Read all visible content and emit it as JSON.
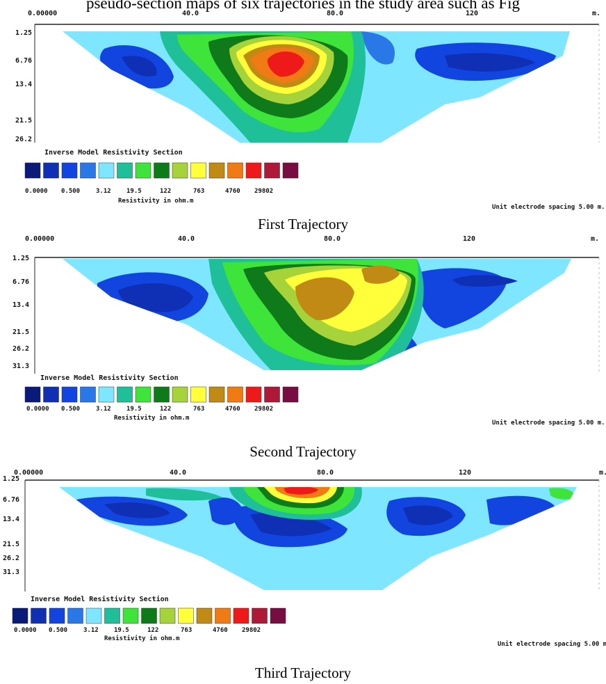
{
  "header_text": "pseudo-section maps of six trajectories in the study area such as Fig",
  "palette": [
    "#0a1a78",
    "#0f2fb4",
    "#1244e0",
    "#2a78e8",
    "#7fe6ff",
    "#1fbf9a",
    "#3ee43a",
    "#0f7a1a",
    "#a6d23a",
    "#ffff3a",
    "#c08a14",
    "#f07a14",
    "#ee1a1a",
    "#b01838",
    "#7a0c44"
  ],
  "common": {
    "legend_title": "Inverse Model Resistivity Section",
    "legend_ticks": [
      "0.0000",
      "0.500",
      "3.12",
      "19.5",
      "122",
      "763",
      "4760",
      "29802"
    ],
    "legend_unit": "Resistivity in ohm.m",
    "electrode_note": "Unit electrode spacing 5.00 m.",
    "x_ticks": [
      "0.00000",
      "40.0",
      "80.0",
      "120"
    ],
    "x_unit": "m."
  },
  "panels": [
    {
      "caption": "First Trajectory",
      "depths": [
        "1.25",
        "6.76",
        "13.4",
        "21.5",
        "26.2"
      ]
    },
    {
      "caption": "Second Trajectory",
      "depths": [
        "1.25",
        "6.76",
        "13.4",
        "21.5",
        "26.2",
        "31.3"
      ]
    },
    {
      "caption": "Third Trajectory",
      "depths": [
        "1.25",
        "6.76",
        "13.4",
        "21.5",
        "26.2",
        "31.3"
      ]
    }
  ]
}
